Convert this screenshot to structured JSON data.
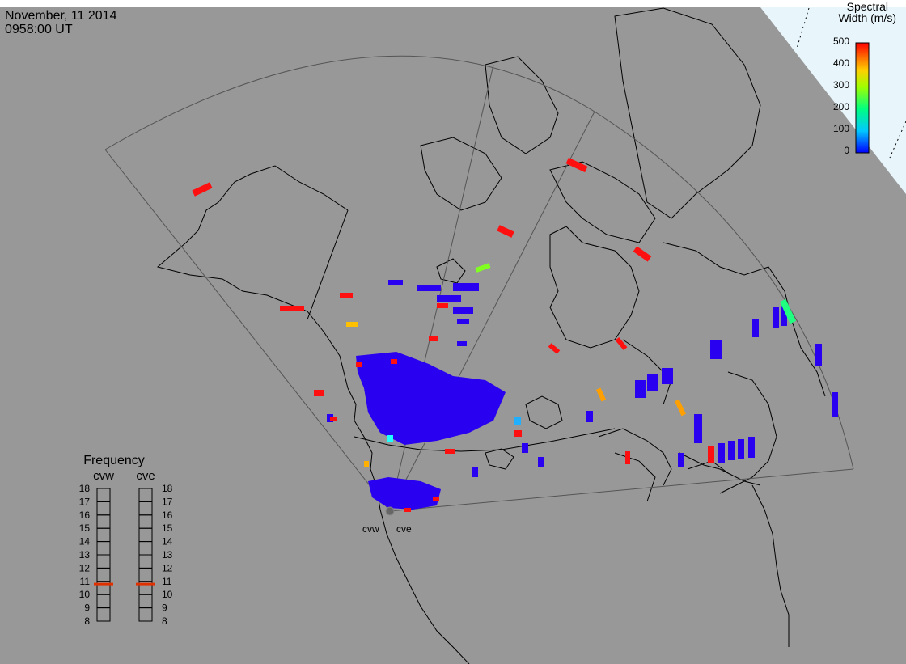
{
  "header": {
    "date": "November, 11 2014",
    "time": "0958:00 UT"
  },
  "colorbar": {
    "title_line1": "Spectral",
    "title_line2": "Width (m/s)",
    "ticks": [
      "500",
      "400",
      "300",
      "200",
      "100",
      "0"
    ]
  },
  "stations": {
    "west": "cvw",
    "east": "cve"
  },
  "frequency_panel": {
    "title": "Frequency",
    "col_west": "cvw",
    "col_east": "cve",
    "ticks": [
      "18",
      "17",
      "16",
      "15",
      "14",
      "13",
      "12",
      "11",
      "10",
      "9",
      "8"
    ],
    "cvw_frequency_mhz": 10.8,
    "cve_frequency_mhz": 10.8,
    "marker_color": "#e03000"
  },
  "colors": {
    "land": "#989898",
    "ocean_pole": "#e6f4fa",
    "echo_low": "#2a00f0",
    "echo_high": "#ff1010",
    "echo_mid_green": "#80ff20",
    "echo_orange": "#ffb000"
  }
}
